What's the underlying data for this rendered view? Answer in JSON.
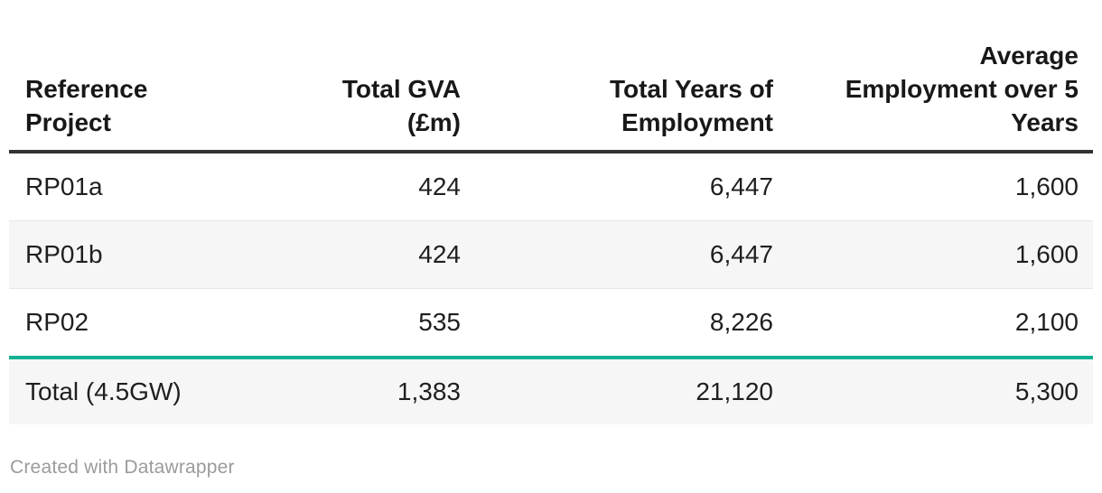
{
  "table": {
    "columns": [
      {
        "label": "Reference\nProject",
        "align": "left"
      },
      {
        "label": "Total GVA\n(£m)",
        "align": "right"
      },
      {
        "label": "Total Years of\nEmployment",
        "align": "right"
      },
      {
        "label": "Average\nEmployment over 5\nYears",
        "align": "right"
      }
    ],
    "rows": [
      [
        "RP01a",
        "424",
        "6,447",
        "1,600"
      ],
      [
        "RP01b",
        "424",
        "6,447",
        "1,600"
      ],
      [
        "RP02",
        "535",
        "8,226",
        "2,100"
      ]
    ],
    "total_row": [
      "Total (4.5GW)",
      "1,383",
      "21,120",
      "5,300"
    ]
  },
  "footer": {
    "credit": "Created with Datawrapper"
  },
  "colors": {
    "accent_teal": "#13b193",
    "header_rule": "#333333",
    "row_stripe": "#f6f6f6",
    "row_border": "#e6e6e6",
    "body_text": "#1f1f1f",
    "credit_text": "#9b9b9b"
  },
  "chart_data": {
    "type": "table",
    "title": "",
    "columns": [
      "Reference Project",
      "Total GVA (£m)",
      "Total Years of Employment",
      "Average Employment over 5 Years"
    ],
    "rows": [
      {
        "reference_project": "RP01a",
        "total_gva_gbp_m": 424,
        "total_years_of_employment": 6447,
        "avg_employment_over_5_years": 1600
      },
      {
        "reference_project": "RP01b",
        "total_gva_gbp_m": 424,
        "total_years_of_employment": 6447,
        "avg_employment_over_5_years": 1600
      },
      {
        "reference_project": "RP02",
        "total_gva_gbp_m": 535,
        "total_years_of_employment": 8226,
        "avg_employment_over_5_years": 2100
      },
      {
        "reference_project": "Total (4.5GW)",
        "total_gva_gbp_m": 1383,
        "total_years_of_employment": 21120,
        "avg_employment_over_5_years": 5300
      }
    ],
    "layout_hints": {
      "striped_rows": true,
      "total_row_highlight_color": "#13b193",
      "numeric_columns_right_aligned": true
    }
  }
}
